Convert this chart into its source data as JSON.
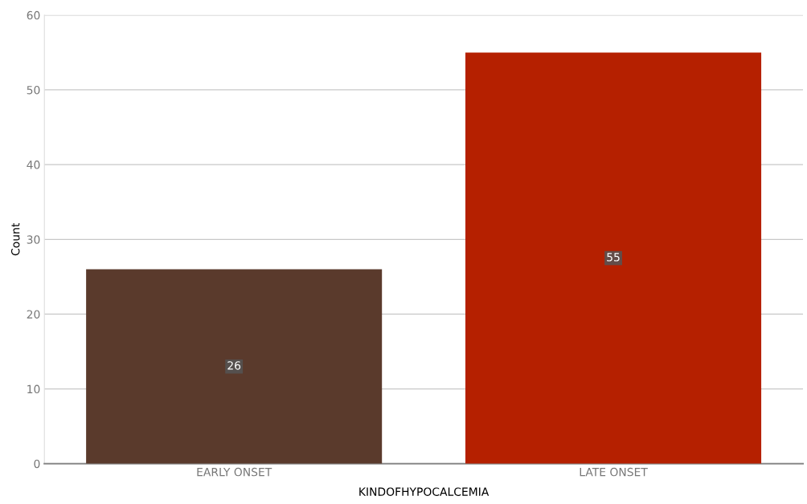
{
  "chart_data": {
    "type": "bar",
    "xlabel": "KINDOFHYPOCALCEMIA",
    "ylabel": "Count",
    "categories": [
      "EARLY ONSET",
      "LATE ONSET"
    ],
    "values": [
      26,
      55
    ],
    "colors": [
      "#5a3a2c",
      "#b52000"
    ],
    "ylim": [
      0,
      60
    ],
    "yticks": [
      0,
      10,
      20,
      30,
      40,
      50,
      60
    ],
    "grid": "y",
    "data_labels": true,
    "legend": false
  }
}
